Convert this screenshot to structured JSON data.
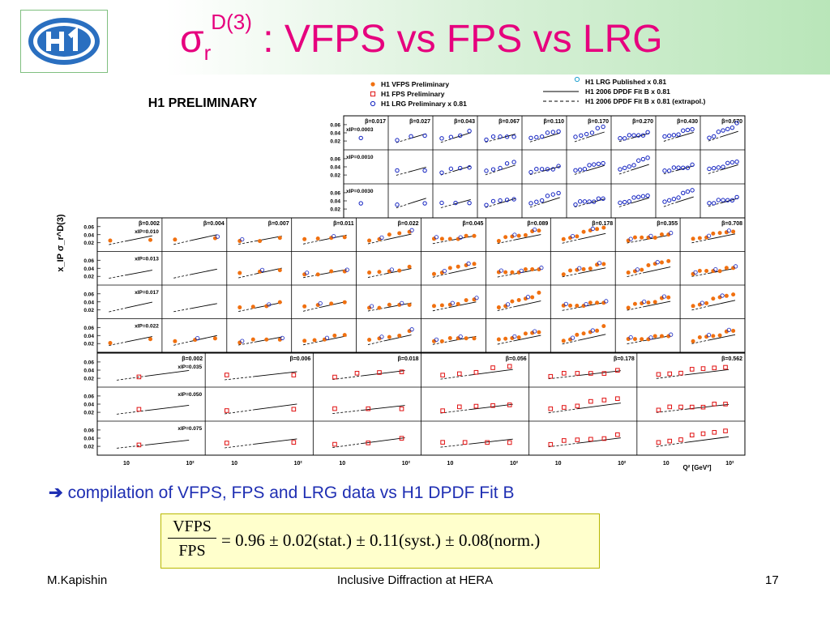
{
  "slide": {
    "title_main": "σ",
    "title_sub": "r",
    "title_sup": "D(3)",
    "title_rest": " : VFPS vs FPS vs LRG",
    "note_arrow": "➔",
    "note": "compilation of VFPS, FPS and LRG data vs H1 DPDF Fit B",
    "formula_num": "VFPS",
    "formula_den": "FPS",
    "formula_rhs": "= 0.96 ± 0.02(stat.) ± 0.11(syst.) ± 0.08(norm.)",
    "footer_left": "M.Kapishin",
    "footer_center": "Inclusive Diffraction at HERA",
    "footer_right": "17"
  },
  "chart_data": {
    "type": "scatter",
    "title": "H1 PRELIMINARY",
    "ylabel": "x_IP σ_r^D(3)",
    "xlabel": "Q² [GeV²]",
    "log_x": true,
    "ylim": [
      0,
      0.07
    ],
    "y_ticks": [
      "0.06",
      "0.04",
      "0.02"
    ],
    "x_ticks": [
      "10",
      "10²"
    ],
    "colors": {
      "vfps": "#f07010",
      "fps": "#e01010",
      "lrg_pub": "#20a0d0",
      "lrg_prel": "#1020c0"
    },
    "legend": [
      {
        "label": "H1 VFPS Preliminary",
        "marker": "vfps"
      },
      {
        "label": "H1 FPS Preliminary",
        "marker": "fps"
      },
      {
        "label": "H1 LRG Preliminary x 0.81",
        "marker": "lrg_prel"
      },
      {
        "label": "H1 LRG Published x 0.81",
        "marker": "lrg_pub"
      },
      {
        "label": "H1 2006 DPDF Fit B x 0.81",
        "marker": "line"
      },
      {
        "label": "H1 2006 DPDF Fit B x 0.81 (extrapol.)",
        "marker": "dash"
      }
    ],
    "blocks": [
      {
        "name": "top",
        "betas": [
          "β=0.017",
          "β=0.027",
          "β=0.043",
          "β=0.067",
          "β=0.110",
          "β=0.170",
          "β=0.270",
          "β=0.430",
          "β=0.670"
        ],
        "xips": [
          "x_IP=0.0003",
          "x_IP=0.0010",
          "x_IP=0.0030"
        ],
        "point_type": "lrg_prel"
      },
      {
        "name": "middle",
        "betas": [
          "β=0.002",
          "β=0.004",
          "β=0.007",
          "β=0.011",
          "β=0.022",
          "β=0.045",
          "β=0.089",
          "β=0.178",
          "β=0.355",
          "β=0.708"
        ],
        "xips": [
          "x_IP=0.010",
          "x_IP=0.013",
          "x_IP=0.017",
          "x_IP=0.022"
        ],
        "point_type": "vfps"
      },
      {
        "name": "bottom",
        "betas": [
          "β=0.002",
          "β=0.006",
          "β=0.018",
          "β=0.056",
          "β=0.178",
          "β=0.562"
        ],
        "xips": [
          "x_IP=0.035",
          "x_IP=0.050",
          "x_IP=0.075"
        ],
        "point_type": "fps"
      }
    ]
  }
}
